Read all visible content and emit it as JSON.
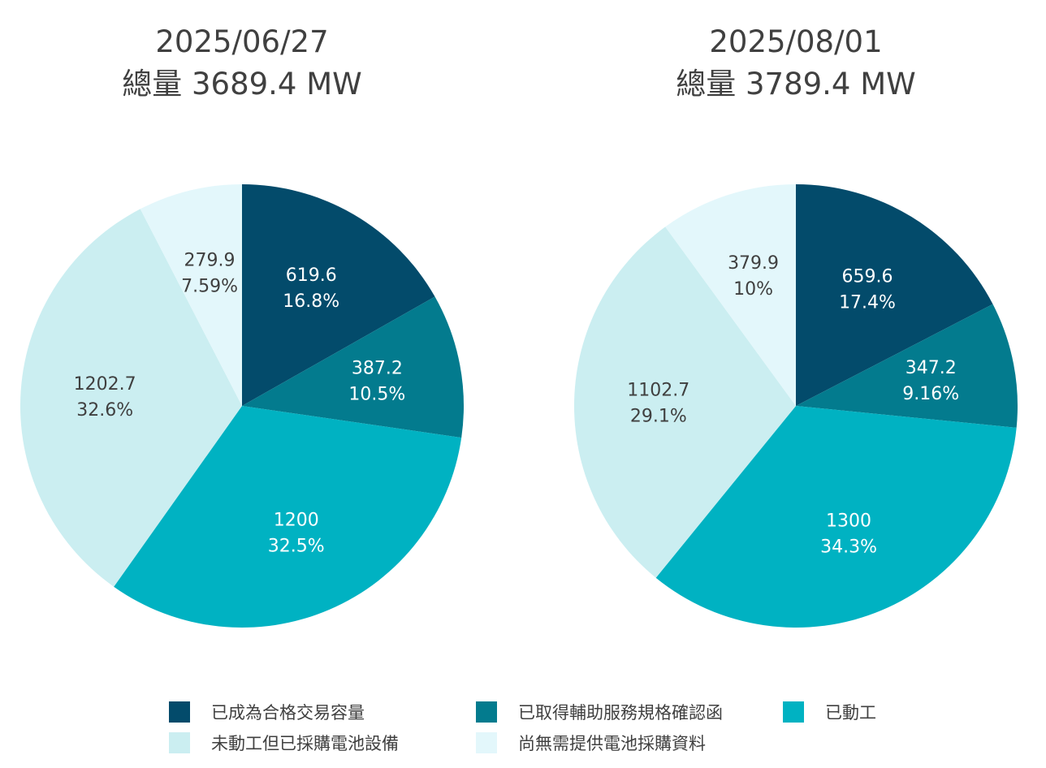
{
  "chart_data": [
    {
      "type": "pie",
      "title": "2025/06/27",
      "subtitle": "總量 3689.4 MW",
      "start": "12 o'clock, clockwise",
      "slices": [
        {
          "category": "已成為合格交易容量",
          "value": 619.6,
          "percent": "16.8%"
        },
        {
          "category": "已取得輔助服務規格確認函",
          "value": 387.2,
          "percent": "10.5%"
        },
        {
          "category": "已動工",
          "value": 1200,
          "percent": "32.5%"
        },
        {
          "category": "未動工但已採購電池設備",
          "value": 1202.7,
          "percent": "32.6%"
        },
        {
          "category": "尚無需提供電池採購資料",
          "value": 279.9,
          "percent": "7.59%"
        }
      ]
    },
    {
      "type": "pie",
      "title": "2025/08/01",
      "subtitle": "總量 3789.4 MW",
      "start": "12 o'clock, clockwise",
      "slices": [
        {
          "category": "已成為合格交易容量",
          "value": 659.6,
          "percent": "17.4%"
        },
        {
          "category": "已取得輔助服務規格確認函",
          "value": 347.2,
          "percent": "9.16%"
        },
        {
          "category": "已動工",
          "value": 1300,
          "percent": "34.3%"
        },
        {
          "category": "未動工但已採購電池設備",
          "value": 1102.7,
          "percent": "29.1%"
        },
        {
          "category": "尚無需提供電池採購資料",
          "value": 379.9,
          "percent": "10%"
        }
      ]
    }
  ],
  "legend": {
    "placement": "bottom",
    "items": [
      {
        "label": "已成為合格交易容量",
        "color": "#034b6b",
        "label_color": "#ffffff"
      },
      {
        "label": "已取得輔助服務規格確認函",
        "color": "#037b8e",
        "label_color": "#ffffff"
      },
      {
        "label": "已動工",
        "color": "#00b2c2",
        "label_color": "#ffffff"
      },
      {
        "label": "未動工但已採購電池設備",
        "color": "#cbeef1",
        "label_color": "#404040"
      },
      {
        "label": "尚無需提供電池採購資料",
        "color": "#e3f7fb",
        "label_color": "#404040"
      }
    ]
  }
}
